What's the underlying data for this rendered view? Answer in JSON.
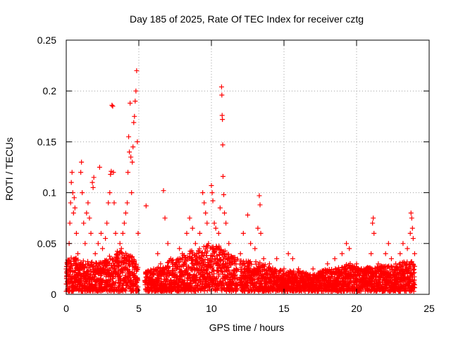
{
  "chart_data": {
    "type": "scatter",
    "title": "Day 185 of 2025, Rate Of TEC Index for receiver cztg",
    "xlabel": "GPS time / hours",
    "ylabel": "ROTI / TECUs",
    "xlim": [
      0,
      25
    ],
    "ylim": [
      0,
      0.25
    ],
    "xticks": [
      0,
      5,
      10,
      15,
      20,
      25
    ],
    "xtick_labels": [
      "0",
      "5",
      "10",
      "15",
      "20",
      "25"
    ],
    "yticks": [
      0,
      0.05,
      0.1,
      0.15,
      0.2,
      0.25
    ],
    "ytick_labels": [
      "0",
      "0.05",
      "0.1",
      "0.15",
      "0.2",
      "0.25"
    ],
    "grid": true,
    "marker": "+",
    "color": "#ff0000",
    "series": [
      {
        "name": "ROTI",
        "points": [
          [
            0.05,
            0.01
          ],
          [
            0.1,
            0.02
          ],
          [
            0.15,
            0.03
          ],
          [
            0.2,
            0.05
          ],
          [
            0.25,
            0.07
          ],
          [
            0.3,
            0.09
          ],
          [
            0.35,
            0.11
          ],
          [
            0.4,
            0.12
          ],
          [
            0.45,
            0.1
          ],
          [
            0.5,
            0.08
          ],
          [
            0.55,
            0.095
          ],
          [
            0.6,
            0.085
          ],
          [
            0.7,
            0.06
          ],
          [
            0.8,
            0.04
          ],
          [
            0.9,
            0.025
          ],
          [
            1.0,
            0.12
          ],
          [
            1.05,
            0.13
          ],
          [
            1.1,
            0.1
          ],
          [
            1.2,
            0.07
          ],
          [
            1.3,
            0.05
          ],
          [
            1.4,
            0.08
          ],
          [
            1.5,
            0.09
          ],
          [
            1.6,
            0.075
          ],
          [
            1.7,
            0.06
          ],
          [
            1.8,
            0.11
          ],
          [
            1.85,
            0.105
          ],
          [
            1.9,
            0.115
          ],
          [
            2.0,
            0.04
          ],
          [
            2.1,
            0.03
          ],
          [
            2.2,
            0.05
          ],
          [
            2.3,
            0.125
          ],
          [
            2.4,
            0.06
          ],
          [
            2.5,
            0.045
          ],
          [
            2.6,
            0.03
          ],
          [
            2.7,
            0.055
          ],
          [
            2.8,
            0.07
          ],
          [
            2.9,
            0.09
          ],
          [
            3.0,
            0.1
          ],
          [
            3.05,
            0.118
          ],
          [
            3.1,
            0.121
          ],
          [
            3.15,
            0.186
          ],
          [
            3.2,
            0.185
          ],
          [
            3.25,
            0.12
          ],
          [
            3.3,
            0.09
          ],
          [
            3.4,
            0.06
          ],
          [
            3.5,
            0.04
          ],
          [
            3.6,
            0.035
          ],
          [
            3.7,
            0.05
          ],
          [
            3.8,
            0.045
          ],
          [
            3.9,
            0.06
          ],
          [
            4.0,
            0.07
          ],
          [
            4.1,
            0.08
          ],
          [
            4.2,
            0.09
          ],
          [
            4.25,
            0.12
          ],
          [
            4.3,
            0.155
          ],
          [
            4.35,
            0.14
          ],
          [
            4.4,
            0.188
          ],
          [
            4.45,
            0.135
          ],
          [
            4.5,
            0.1
          ],
          [
            4.55,
            0.13
          ],
          [
            4.6,
            0.145
          ],
          [
            4.65,
            0.169
          ],
          [
            4.7,
            0.175
          ],
          [
            4.75,
            0.19
          ],
          [
            4.8,
            0.2
          ],
          [
            4.85,
            0.22
          ],
          [
            4.9,
            0.15
          ],
          [
            4.95,
            0.06
          ],
          [
            5.5,
            0.087
          ],
          [
            6.0,
            0.02
          ],
          [
            6.3,
            0.04
          ],
          [
            6.5,
            0.03
          ],
          [
            6.7,
            0.102
          ],
          [
            6.8,
            0.075
          ],
          [
            7.0,
            0.05
          ],
          [
            7.2,
            0.035
          ],
          [
            7.5,
            0.02
          ],
          [
            7.8,
            0.045
          ],
          [
            8.0,
            0.04
          ],
          [
            8.3,
            0.06
          ],
          [
            8.5,
            0.075
          ],
          [
            8.7,
            0.065
          ],
          [
            8.9,
            0.05
          ],
          [
            9.0,
            0.04
          ],
          [
            9.2,
            0.06
          ],
          [
            9.4,
            0.1
          ],
          [
            9.5,
            0.09
          ],
          [
            9.6,
            0.08
          ],
          [
            9.7,
            0.07
          ],
          [
            9.8,
            0.05
          ],
          [
            10.0,
            0.107
          ],
          [
            10.05,
            0.1
          ],
          [
            10.1,
            0.092
          ],
          [
            10.2,
            0.07
          ],
          [
            10.3,
            0.065
          ],
          [
            10.5,
            0.06
          ],
          [
            10.6,
            0.085
          ],
          [
            10.7,
            0.204
          ],
          [
            10.72,
            0.196
          ],
          [
            10.74,
            0.176
          ],
          [
            10.76,
            0.172
          ],
          [
            10.78,
            0.147
          ],
          [
            10.8,
            0.116
          ],
          [
            10.85,
            0.098
          ],
          [
            10.9,
            0.08
          ],
          [
            11.0,
            0.07
          ],
          [
            11.2,
            0.05
          ],
          [
            11.4,
            0.035
          ],
          [
            11.6,
            0.03
          ],
          [
            12.0,
            0.04
          ],
          [
            12.2,
            0.06
          ],
          [
            12.5,
            0.078
          ],
          [
            12.7,
            0.05
          ],
          [
            13.0,
            0.045
          ],
          [
            13.2,
            0.065
          ],
          [
            13.3,
            0.097
          ],
          [
            13.35,
            0.088
          ],
          [
            13.4,
            0.06
          ],
          [
            13.6,
            0.035
          ],
          [
            14.0,
            0.03
          ],
          [
            14.5,
            0.035
          ],
          [
            15.0,
            0.025
          ],
          [
            15.3,
            0.04
          ],
          [
            15.6,
            0.035
          ],
          [
            16.0,
            0.025
          ],
          [
            16.5,
            0.02
          ],
          [
            17.0,
            0.025
          ],
          [
            17.5,
            0.02
          ],
          [
            18.0,
            0.03
          ],
          [
            18.5,
            0.035
          ],
          [
            19.0,
            0.04
          ],
          [
            19.3,
            0.05
          ],
          [
            19.5,
            0.045
          ],
          [
            20.0,
            0.03
          ],
          [
            20.5,
            0.025
          ],
          [
            21.0,
            0.04
          ],
          [
            21.1,
            0.07
          ],
          [
            21.15,
            0.075
          ],
          [
            21.2,
            0.06
          ],
          [
            21.5,
            0.03
          ],
          [
            22.0,
            0.04
          ],
          [
            22.2,
            0.05
          ],
          [
            22.4,
            0.035
          ],
          [
            22.7,
            0.03
          ],
          [
            23.0,
            0.04
          ],
          [
            23.2,
            0.05
          ],
          [
            23.5,
            0.045
          ],
          [
            23.7,
            0.06
          ],
          [
            23.75,
            0.08
          ],
          [
            23.8,
            0.075
          ],
          [
            23.85,
            0.065
          ],
          [
            23.9,
            0.055
          ],
          [
            24.0,
            0.04
          ]
        ]
      }
    ],
    "band_envelope": {
      "hours": [
        0,
        0.5,
        1,
        1.5,
        2,
        2.5,
        3,
        3.5,
        4,
        4.5,
        5,
        5.5,
        6,
        6.5,
        7,
        7.5,
        8,
        8.5,
        9,
        9.5,
        10,
        10.5,
        11,
        11.5,
        12,
        12.5,
        13,
        13.5,
        14,
        14.5,
        15,
        15.5,
        16,
        16.5,
        17,
        17.5,
        18,
        18.5,
        19,
        19.5,
        20,
        20.5,
        21,
        21.5,
        22,
        22.5,
        23,
        23.5,
        24
      ],
      "upper": [
        0.03,
        0.035,
        0.03,
        0.03,
        0.028,
        0.03,
        0.035,
        0.04,
        0.038,
        0.035,
        0.025,
        0.02,
        0.022,
        0.025,
        0.03,
        0.032,
        0.035,
        0.04,
        0.04,
        0.045,
        0.045,
        0.045,
        0.04,
        0.035,
        0.03,
        0.03,
        0.03,
        0.028,
        0.025,
        0.022,
        0.02,
        0.02,
        0.02,
        0.018,
        0.018,
        0.02,
        0.022,
        0.022,
        0.025,
        0.028,
        0.025,
        0.022,
        0.025,
        0.025,
        0.025,
        0.025,
        0.028,
        0.03,
        0.03
      ]
    }
  }
}
